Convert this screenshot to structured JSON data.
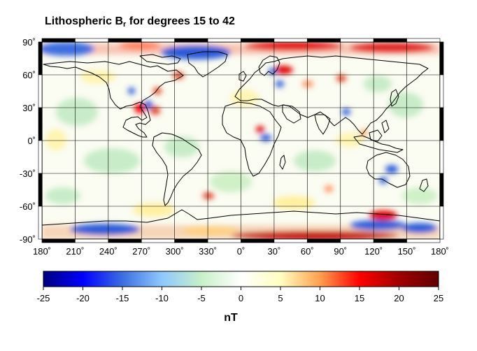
{
  "title": {
    "main": "Lithospheric B",
    "sub": "r",
    "rest": " for degrees 15 to 42"
  },
  "map": {
    "projection": "equirectangular",
    "lat_ticks": [
      "90˚",
      "60˚",
      "30˚",
      "0˚",
      "-30˚",
      "-60˚",
      "-90˚"
    ],
    "lon_ticks": [
      "180˚",
      "210˚",
      "240˚",
      "270˚",
      "300˚",
      "330˚",
      "0˚",
      "30˚",
      "60˚",
      "90˚",
      "120˚",
      "150˚",
      "180˚"
    ],
    "lat_values": [
      90,
      60,
      30,
      0,
      -30,
      -60,
      -90
    ],
    "lon_values": [
      180,
      210,
      240,
      270,
      300,
      330,
      360,
      390,
      420,
      450,
      480,
      510,
      540
    ],
    "grid": true,
    "coastlines": true
  },
  "colorbar": {
    "ticks": [
      "-25",
      "-20",
      "-15",
      "-10",
      "-5",
      "0",
      "5",
      "10",
      "15",
      "20",
      "25"
    ],
    "min": -25,
    "max": 25,
    "unit": "nT",
    "colors": [
      "#00007f",
      "#0000ff",
      "#3c6ee0",
      "#8fc8ff",
      "#c8f0c8",
      "#ffffff",
      "#ffffc0",
      "#ffa050",
      "#ff0000",
      "#a00000",
      "#600000"
    ]
  }
}
